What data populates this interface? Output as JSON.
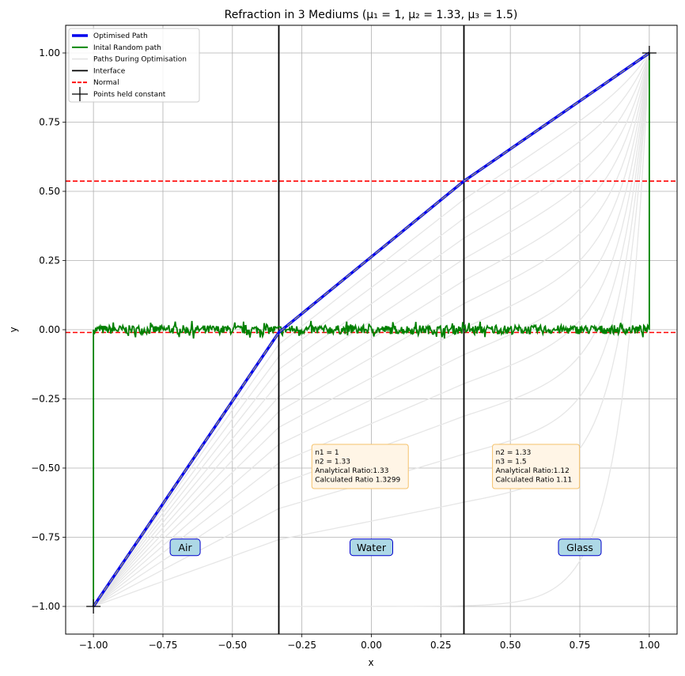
{
  "chart_data": {
    "type": "line",
    "title": "Refraction in 3 Mediums (μ₁ = 1, μ₂ = 1.33, μ₃ = 1.5)",
    "xlabel": "x",
    "ylabel": "y",
    "xlim": [
      -1.1,
      1.1
    ],
    "ylim": [
      -1.1,
      1.1
    ],
    "x_ticks": [
      -1.0,
      -0.75,
      -0.5,
      -0.25,
      0.0,
      0.25,
      0.5,
      0.75,
      1.0
    ],
    "x_tick_labels": [
      "−1.00",
      "−0.75",
      "−0.50",
      "−0.25",
      "0.00",
      "0.25",
      "0.50",
      "0.75",
      "1.00"
    ],
    "y_ticks": [
      -1.0,
      -0.75,
      -0.5,
      -0.25,
      0.0,
      0.25,
      0.5,
      0.75,
      1.0
    ],
    "y_tick_labels": [
      "−1.00",
      "−0.75",
      "−0.50",
      "−0.25",
      "0.00",
      "0.25",
      "0.50",
      "0.75",
      "1.00"
    ],
    "grid": true,
    "legend_position": "top-left",
    "legend": [
      {
        "label": "Optimised Path",
        "style": "thick-line",
        "color": "#0000ee"
      },
      {
        "label": "Inital Random path",
        "style": "line",
        "color": "#008000"
      },
      {
        "label": "Paths During Optimisation",
        "style": "line",
        "color": "#e6e6e6"
      },
      {
        "label": "Interface",
        "style": "line",
        "color": "#000000"
      },
      {
        "label": "Normal",
        "style": "dashed",
        "color": "#ff0000"
      },
      {
        "label": "Points held constant",
        "style": "marker-plus",
        "color": "#000000"
      }
    ],
    "interfaces_x": [
      -0.333,
      0.333
    ],
    "normals_y": [
      -0.01,
      0.537
    ],
    "fixed_points": [
      [
        -1.0,
        -1.0
      ],
      [
        1.0,
        1.0
      ]
    ],
    "optimised_path": {
      "name": "Optimised Path",
      "x": [
        -1.0,
        -0.333,
        0.333,
        1.0
      ],
      "y": [
        -1.0,
        -0.01,
        0.537,
        1.0
      ]
    },
    "initial_random_path": {
      "name": "Inital Random path",
      "x": [
        -1.0,
        -1.0,
        1.0,
        1.0
      ],
      "y": [
        -1.0,
        0.0,
        0.0,
        1.0
      ],
      "noise_amplitude": 0.02
    },
    "optimisation_paths_count": 14,
    "annotations": [
      {
        "lines": [
          "n1 = 1",
          "n2 = 1.33",
          "Analytical Ratio:1.33",
          "Calculated Ratio 1.3299"
        ],
        "x": -0.2,
        "y": -0.42
      },
      {
        "lines": [
          "n2 = 1.33",
          "n3 = 1.5",
          "Analytical Ratio:1.12",
          "Calculated Ratio 1.11"
        ],
        "x": 0.45,
        "y": -0.42
      }
    ],
    "region_labels": [
      {
        "text": "Air",
        "x": -0.67,
        "y": -0.785
      },
      {
        "text": "Water",
        "x": 0.0,
        "y": -0.785
      },
      {
        "text": "Glass",
        "x": 0.75,
        "y": -0.785
      }
    ],
    "colors": {
      "optimised": "#0000ee",
      "optimised_dash": "#888888",
      "initial": "#008000",
      "during": "#e6e6e6",
      "interface": "#000000",
      "normal": "#ff0000",
      "grid": "#b0b0b0",
      "note_bg": "#fff5e6",
      "note_border": "#f5c26b",
      "region_bg": "#add8e6",
      "region_border": "#0000cc"
    }
  }
}
